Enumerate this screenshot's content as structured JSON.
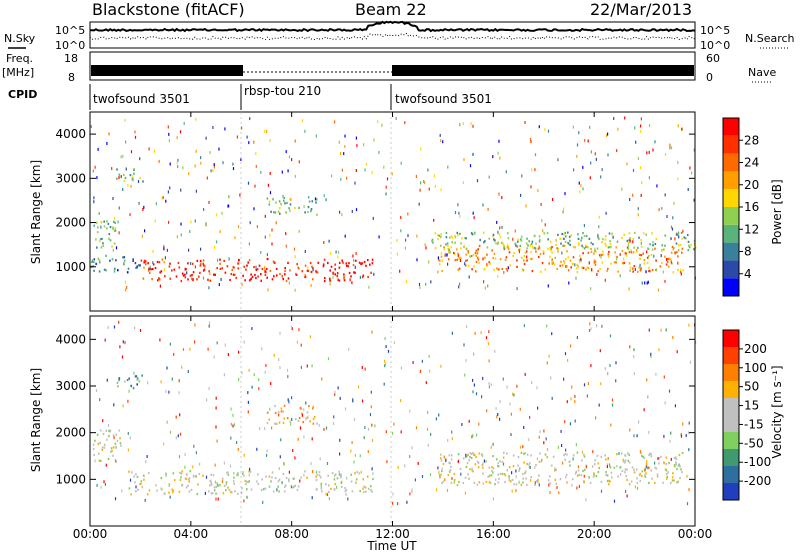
{
  "header": {
    "station": "Blackstone (fitACF)",
    "beam": "Beam 22",
    "date": "22/Mar/2013"
  },
  "left_labels": {
    "nsky": "N.Sky",
    "freq": "Freq.",
    "freq_unit": "[MHz]",
    "cpid": "CPID"
  },
  "right_labels": {
    "nsearch": "N.Search",
    "nave": "Nave"
  },
  "noise_panel": {
    "left_ticks": [
      "10^5",
      "10^0"
    ],
    "right_ticks": [
      "10^5",
      "10^0"
    ]
  },
  "freq_panel": {
    "left_ticks": [
      "18",
      "8"
    ],
    "right_ticks": [
      "60",
      "0"
    ]
  },
  "cpid_segments": [
    {
      "label": "twofsound 3501",
      "start_h": 0,
      "end_h": 6
    },
    {
      "label": "rbsp-tou 210",
      "start_h": 6,
      "end_h": 12
    },
    {
      "label": "twofsound 3501",
      "start_h": 12,
      "end_h": 24
    }
  ],
  "x_axis": {
    "label": "Time UT",
    "ticks": [
      "00:00",
      "04:00",
      "08:00",
      "12:00",
      "16:00",
      "20:00",
      "00:00"
    ],
    "range_h": [
      0,
      24
    ]
  },
  "y_axis": {
    "label": "Slant Range [km]",
    "ticks": [
      "1000",
      "2000",
      "3000",
      "4000"
    ],
    "range": [
      0,
      4500
    ]
  },
  "power_scale": {
    "label": "Power [dB]",
    "ticks": [
      "28",
      "24",
      "20",
      "16",
      "12",
      "8",
      "4"
    ],
    "colors": [
      "#0000ff",
      "#2b4aa8",
      "#3a7f9c",
      "#59b37a",
      "#8fd050",
      "#ffd700",
      "#ffa000",
      "#ff6a00",
      "#ff3000",
      "#ff0000"
    ]
  },
  "velocity_scale": {
    "label": "Velocity [m s⁻¹]",
    "ticks": [
      "200",
      "100",
      "50",
      "15",
      "-15",
      "-50",
      "-100",
      "-200"
    ],
    "colors": [
      "#1f3fbf",
      "#2f6fa0",
      "#3f9a70",
      "#80d060",
      "#c0c0c0",
      "#c0c0c0",
      "#ffb000",
      "#ff8000",
      "#ff4000",
      "#ff0000"
    ]
  },
  "chart_data": [
    {
      "type": "heatmap",
      "title": "Power",
      "xlabel": "Time UT",
      "ylabel": "Slant Range [km]",
      "xlim": [
        0,
        24
      ],
      "ylim": [
        0,
        4500
      ],
      "colorbar": {
        "label": "Power [dB]",
        "range": [
          0,
          30
        ]
      },
      "regions": [
        {
          "t0": 0.0,
          "t1": 1.0,
          "r0": 1400,
          "r1": 2100,
          "value": 12
        },
        {
          "t0": 1.0,
          "t1": 2.2,
          "r0": 2950,
          "r1": 3250,
          "value": 12
        },
        {
          "t0": 0.0,
          "t1": 2.0,
          "r0": 900,
          "r1": 1300,
          "value": 8
        },
        {
          "t0": 2.0,
          "t1": 6.0,
          "r0": 700,
          "r1": 1200,
          "value": 26
        },
        {
          "t0": 6.0,
          "t1": 11.2,
          "r0": 700,
          "r1": 1200,
          "value": 28
        },
        {
          "t0": 7.0,
          "t1": 9.0,
          "r0": 2200,
          "r1": 2600,
          "value": 12
        },
        {
          "t0": 13.8,
          "t1": 23.5,
          "r0": 900,
          "r1": 1500,
          "value": 20
        },
        {
          "t0": 13.5,
          "t1": 24.0,
          "r0": 1400,
          "r1": 1800,
          "value": 12
        }
      ]
    },
    {
      "type": "heatmap",
      "title": "Velocity",
      "xlabel": "Time UT",
      "ylabel": "Slant Range [km]",
      "xlim": [
        0,
        24
      ],
      "ylim": [
        0,
        4500
      ],
      "colorbar": {
        "label": "Velocity [m s⁻¹]",
        "range": [
          -200,
          200
        ]
      },
      "regions": [
        {
          "t0": 0.0,
          "t1": 1.2,
          "r0": 1400,
          "r1": 2100,
          "value": 0
        },
        {
          "t0": 1.0,
          "t1": 2.2,
          "r0": 2950,
          "r1": 3250,
          "value": -100
        },
        {
          "t0": 1.5,
          "t1": 6.0,
          "r0": 700,
          "r1": 1200,
          "value": 0
        },
        {
          "t0": 6.0,
          "t1": 11.2,
          "r0": 750,
          "r1": 1200,
          "value": 0
        },
        {
          "t0": 7.0,
          "t1": 9.0,
          "r0": 2200,
          "r1": 2600,
          "value": 50
        },
        {
          "t0": 13.8,
          "t1": 23.5,
          "r0": 900,
          "r1": 1600,
          "value": 0
        }
      ]
    }
  ]
}
